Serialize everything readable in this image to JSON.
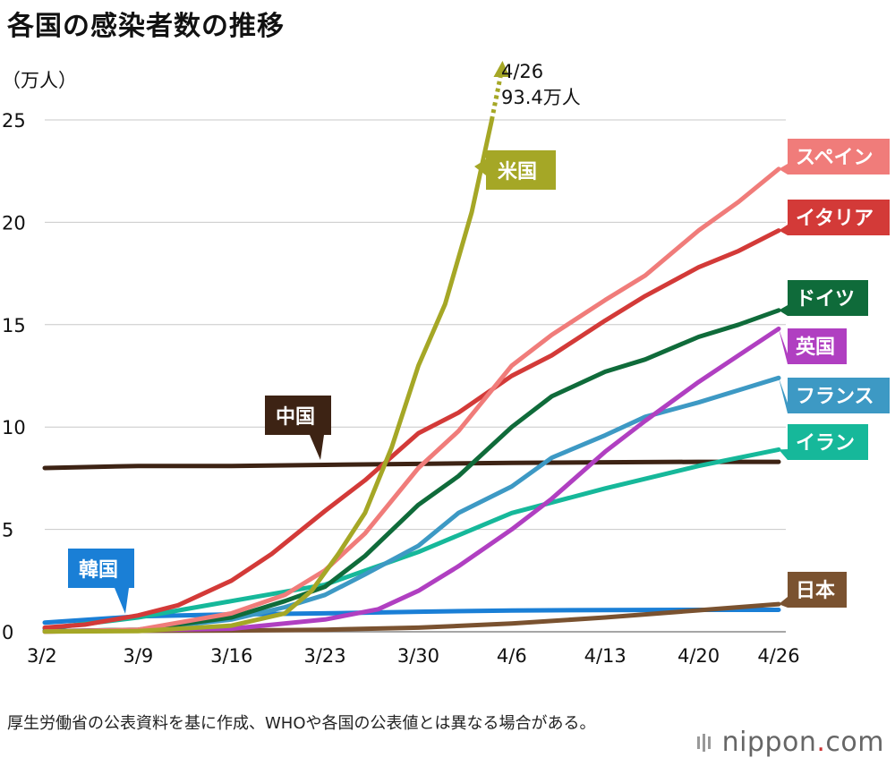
{
  "title": "各国の感染者数の推移",
  "source_note": "厚生労働省の公表資料を基に作成、WHOや各国の公表値とは異なる場合がある。",
  "brand": {
    "name": "nippon",
    "dot": ".",
    "tld": "com"
  },
  "chart_data": {
    "type": "line",
    "ylabel": "（万人）",
    "ylim": [
      0,
      25
    ],
    "yticks": [
      0,
      5,
      10,
      15,
      20,
      25
    ],
    "xlim": [
      0,
      55
    ],
    "xticks": [
      {
        "x": 0,
        "label": "3/2"
      },
      {
        "x": 7,
        "label": "3/9"
      },
      {
        "x": 14,
        "label": "3/16"
      },
      {
        "x": 21,
        "label": "3/23"
      },
      {
        "x": 28,
        "label": "3/30"
      },
      {
        "x": 35,
        "label": "4/6"
      },
      {
        "x": 42,
        "label": "4/13"
      },
      {
        "x": 49,
        "label": "4/20"
      },
      {
        "x": 55,
        "label": "4/26"
      }
    ],
    "grid": true,
    "annotation": {
      "lines": [
        "4/26",
        "93.4万人"
      ]
    },
    "series": [
      {
        "name": "中国",
        "color": "#3d2314",
        "points": [
          [
            0,
            8.0
          ],
          [
            7,
            8.1
          ],
          [
            14,
            8.1
          ],
          [
            21,
            8.15
          ],
          [
            28,
            8.2
          ],
          [
            35,
            8.25
          ],
          [
            42,
            8.28
          ],
          [
            49,
            8.3
          ],
          [
            55,
            8.3
          ]
        ]
      },
      {
        "name": "韓国",
        "color": "#1a7fd6",
        "points": [
          [
            0,
            0.45
          ],
          [
            7,
            0.75
          ],
          [
            14,
            0.85
          ],
          [
            21,
            0.9
          ],
          [
            28,
            0.98
          ],
          [
            35,
            1.04
          ],
          [
            42,
            1.06
          ],
          [
            49,
            1.07
          ],
          [
            55,
            1.07
          ]
        ]
      },
      {
        "name": "日本",
        "color": "#7a5230",
        "points": [
          [
            0,
            0.03
          ],
          [
            14,
            0.06
          ],
          [
            21,
            0.1
          ],
          [
            28,
            0.2
          ],
          [
            35,
            0.4
          ],
          [
            42,
            0.7
          ],
          [
            49,
            1.05
          ],
          [
            55,
            1.35
          ]
        ]
      },
      {
        "name": "イラン",
        "color": "#16b89a",
        "points": [
          [
            0,
            0.15
          ],
          [
            7,
            0.7
          ],
          [
            14,
            1.5
          ],
          [
            21,
            2.3
          ],
          [
            28,
            3.9
          ],
          [
            35,
            5.8
          ],
          [
            42,
            7.0
          ],
          [
            49,
            8.1
          ],
          [
            55,
            8.9
          ]
        ]
      },
      {
        "name": "フランス",
        "color": "#3d99c4",
        "points": [
          [
            0,
            0.02
          ],
          [
            7,
            0.1
          ],
          [
            14,
            0.6
          ],
          [
            18,
            1.2
          ],
          [
            21,
            1.8
          ],
          [
            24,
            2.8
          ],
          [
            28,
            4.2
          ],
          [
            31,
            5.8
          ],
          [
            35,
            7.1
          ],
          [
            38,
            8.5
          ],
          [
            42,
            9.6
          ],
          [
            45,
            10.5
          ],
          [
            49,
            11.2
          ],
          [
            52,
            11.8
          ],
          [
            55,
            12.4
          ]
        ]
      },
      {
        "name": "英国",
        "color": "#b03fc1",
        "points": [
          [
            0,
            0.01
          ],
          [
            14,
            0.15
          ],
          [
            21,
            0.6
          ],
          [
            25,
            1.1
          ],
          [
            28,
            2.0
          ],
          [
            31,
            3.2
          ],
          [
            35,
            5.0
          ],
          [
            38,
            6.5
          ],
          [
            42,
            8.8
          ],
          [
            45,
            10.3
          ],
          [
            49,
            12.2
          ],
          [
            52,
            13.5
          ],
          [
            55,
            14.8
          ]
        ]
      },
      {
        "name": "ドイツ",
        "color": "#0f6b3a",
        "points": [
          [
            0,
            0.02
          ],
          [
            7,
            0.1
          ],
          [
            14,
            0.7
          ],
          [
            18,
            1.5
          ],
          [
            21,
            2.2
          ],
          [
            24,
            3.7
          ],
          [
            28,
            6.2
          ],
          [
            31,
            7.6
          ],
          [
            35,
            10.0
          ],
          [
            38,
            11.5
          ],
          [
            42,
            12.7
          ],
          [
            45,
            13.3
          ],
          [
            49,
            14.4
          ],
          [
            52,
            15.0
          ],
          [
            55,
            15.7
          ]
        ]
      },
      {
        "name": "イタリア",
        "color": "#d33a38",
        "points": [
          [
            0,
            0.2
          ],
          [
            3,
            0.35
          ],
          [
            7,
            0.8
          ],
          [
            10,
            1.3
          ],
          [
            14,
            2.5
          ],
          [
            17,
            3.8
          ],
          [
            21,
            5.9
          ],
          [
            24,
            7.4
          ],
          [
            28,
            9.7
          ],
          [
            31,
            10.7
          ],
          [
            35,
            12.5
          ],
          [
            38,
            13.5
          ],
          [
            42,
            15.2
          ],
          [
            45,
            16.4
          ],
          [
            49,
            17.8
          ],
          [
            52,
            18.6
          ],
          [
            55,
            19.6
          ]
        ]
      },
      {
        "name": "スペイン",
        "color": "#f07c7a",
        "points": [
          [
            0,
            0.01
          ],
          [
            7,
            0.1
          ],
          [
            14,
            0.9
          ],
          [
            18,
            1.8
          ],
          [
            21,
            3.0
          ],
          [
            24,
            4.8
          ],
          [
            28,
            8.0
          ],
          [
            31,
            9.8
          ],
          [
            35,
            13.0
          ],
          [
            38,
            14.5
          ],
          [
            42,
            16.2
          ],
          [
            45,
            17.4
          ],
          [
            49,
            19.6
          ],
          [
            52,
            21.0
          ],
          [
            55,
            22.6
          ]
        ]
      },
      {
        "name": "米国",
        "color": "#a5a726",
        "points": [
          [
            0,
            0.01
          ],
          [
            7,
            0.03
          ],
          [
            14,
            0.3
          ],
          [
            18,
            0.9
          ],
          [
            20,
            2.0
          ],
          [
            22,
            3.8
          ],
          [
            24,
            5.8
          ],
          [
            26,
            9.0
          ],
          [
            28,
            13.0
          ],
          [
            30,
            16.0
          ],
          [
            32,
            20.5
          ],
          [
            33.5,
            25.0
          ]
        ]
      }
    ],
    "labels": [
      {
        "series": "スペイン",
        "text": "スペイン"
      },
      {
        "series": "イタリア",
        "text": "イタリア"
      },
      {
        "series": "ドイツ",
        "text": "ドイツ"
      },
      {
        "series": "英国",
        "text": "英国"
      },
      {
        "series": "フランス",
        "text": "フランス"
      },
      {
        "series": "イラン",
        "text": "イラン"
      },
      {
        "series": "日本",
        "text": "日本"
      },
      {
        "series": "米国",
        "text": "米国"
      },
      {
        "series": "中国",
        "text": "中国"
      },
      {
        "series": "韓国",
        "text": "韓国"
      }
    ]
  }
}
